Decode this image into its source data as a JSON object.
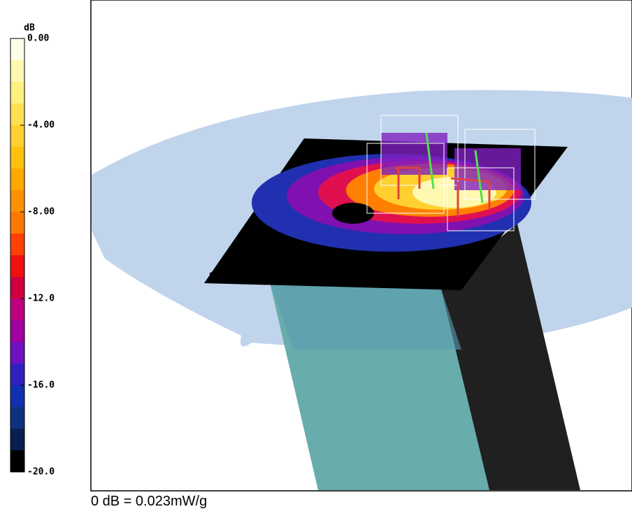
{
  "colorbar": {
    "title": "dB",
    "lim": [
      -20,
      0
    ],
    "ticks": [
      {
        "value": 0,
        "label": "0.00"
      },
      {
        "value": -4,
        "label": "-4.00"
      },
      {
        "value": -8,
        "label": "-8.00"
      },
      {
        "value": -12,
        "label": "-12.0"
      },
      {
        "value": -16,
        "label": "-16.0"
      },
      {
        "value": -20,
        "label": "-20.0"
      }
    ],
    "colors": [
      "#ffffe8",
      "#fff8b0",
      "#fff080",
      "#ffe050",
      "#ffd030",
      "#ffc010",
      "#ffa800",
      "#ff9000",
      "#ff7800",
      "#ff4000",
      "#f01010",
      "#d00040",
      "#c00080",
      "#a000a0",
      "#7010c0",
      "#3020c0",
      "#1030b0",
      "#103080",
      "#082050",
      "#000000"
    ]
  },
  "footnote": "0 dB = 0.023mW/g"
}
